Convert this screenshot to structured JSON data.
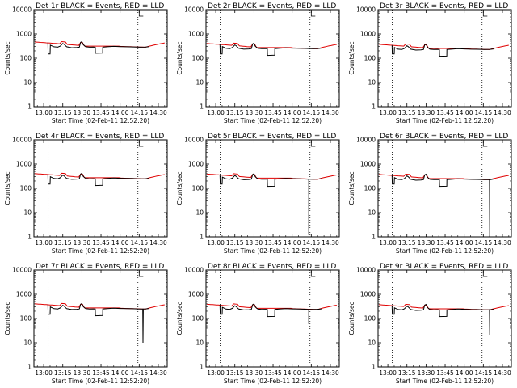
{
  "chart_data": {
    "type": "line",
    "x_tick_labels": [
      "13:00",
      "13:15",
      "13:30",
      "13:45",
      "14:00",
      "14:15",
      "14:30"
    ],
    "x_tick_minutes": [
      780,
      795,
      810,
      825,
      840,
      855,
      870
    ],
    "xlim_minutes": [
      772.33,
      877.0
    ],
    "y_scale": "log",
    "ylim": [
      1,
      10000
    ],
    "y_tick_labels": [
      "1",
      "10",
      "100",
      "1000",
      "10000"
    ],
    "xlabel": "Start Time (02-Feb-11 12:52:20)",
    "ylabel": "Counts/sec",
    "vertical_dotted_lines_minutes": [
      783.5,
      854.0
    ],
    "attenuator_marker_minute": 855,
    "colors": {
      "events": "#000000",
      "lld": "#e00000"
    },
    "panels": [
      {
        "title": "Det 1r BLACK = Events, RED = LLD",
        "level": 300,
        "dip": 160,
        "drop": null
      },
      {
        "title": "Det 2r BLACK = Events, RED = LLD",
        "level": 260,
        "dip": 130,
        "drop": null
      },
      {
        "title": "Det 3r BLACK = Events, RED = LLD",
        "level": 240,
        "dip": 120,
        "drop": null
      },
      {
        "title": "Det 4r BLACK = Events, RED = LLD",
        "level": 260,
        "dip": 130,
        "drop": null
      },
      {
        "title": "Det 5r BLACK = Events, RED = LLD",
        "level": 250,
        "dip": 120,
        "drop": {
          "minute": 853,
          "value": 1.2
        }
      },
      {
        "title": "Det 6r BLACK = Events, RED = LLD",
        "level": 240,
        "dip": 120,
        "drop": {
          "minute": 860,
          "value": 1.0
        }
      },
      {
        "title": "Det 7r BLACK = Events, RED = LLD",
        "level": 260,
        "dip": 130,
        "drop": {
          "minute": 858,
          "value": 10
        }
      },
      {
        "title": "Det 8r BLACK = Events, RED = LLD",
        "level": 250,
        "dip": 120,
        "drop": {
          "minute": 853,
          "value": 60
        }
      },
      {
        "title": "Det 9r BLACK = Events, RED = LLD",
        "level": 240,
        "dip": 120,
        "drop": {
          "minute": 860,
          "value": 20
        }
      }
    ]
  }
}
